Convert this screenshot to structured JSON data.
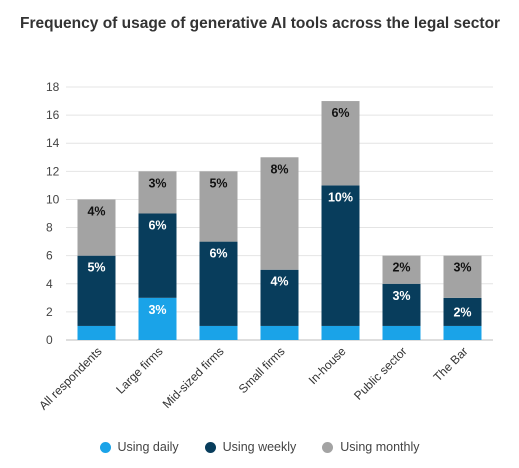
{
  "chart_data": {
    "type": "bar",
    "stacked": true,
    "title": "Frequency of usage of generative AI tools across the legal sector",
    "categories": [
      "All respondents",
      "Large firms",
      "Mid-sized firms",
      "Small firms",
      "In-house",
      "Public sector",
      "The Bar"
    ],
    "series": [
      {
        "name": "Using daily",
        "color": "#1aa3e8",
        "values": [
          1,
          3,
          1,
          1,
          1,
          1,
          1
        ],
        "labels": [
          "",
          "3%",
          "",
          "",
          "",
          "",
          ""
        ]
      },
      {
        "name": "Using weekly",
        "color": "#083d5c",
        "values": [
          5,
          6,
          6,
          4,
          10,
          3,
          2
        ],
        "labels": [
          "5%",
          "6%",
          "6%",
          "4%",
          "10%",
          "3%",
          "2%"
        ]
      },
      {
        "name": "Using monthly",
        "color": "#a3a3a3",
        "values": [
          4,
          3,
          5,
          8,
          6,
          2,
          3
        ],
        "labels": [
          "4%",
          "3%",
          "5%",
          "8%",
          "6%",
          "2%",
          "3%"
        ]
      }
    ],
    "yticks": [
      0,
      2,
      4,
      6,
      8,
      10,
      12,
      14,
      16,
      18
    ],
    "ylim": [
      0,
      18
    ],
    "grid": true,
    "legend": "bottom"
  }
}
